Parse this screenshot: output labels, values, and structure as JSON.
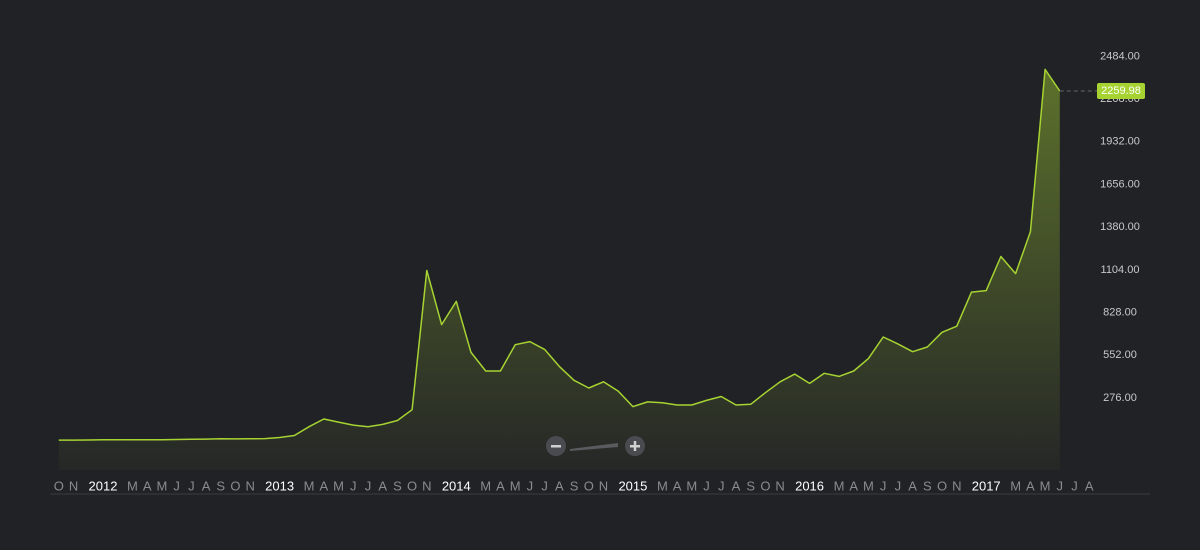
{
  "chart_data": {
    "type": "area",
    "x": [
      "2011-10",
      "2011-11",
      "2011-12",
      "2012-01",
      "2012-02",
      "2012-03",
      "2012-04",
      "2012-05",
      "2012-06",
      "2012-07",
      "2012-08",
      "2012-09",
      "2012-10",
      "2012-11",
      "2012-12",
      "2013-01",
      "2013-02",
      "2013-03",
      "2013-04",
      "2013-05",
      "2013-06",
      "2013-07",
      "2013-08",
      "2013-09",
      "2013-10",
      "2013-11",
      "2013-12",
      "2014-01",
      "2014-02",
      "2014-03",
      "2014-04",
      "2014-05",
      "2014-06",
      "2014-07",
      "2014-08",
      "2014-09",
      "2014-10",
      "2014-11",
      "2014-12",
      "2015-01",
      "2015-02",
      "2015-03",
      "2015-04",
      "2015-05",
      "2015-06",
      "2015-07",
      "2015-08",
      "2015-09",
      "2015-10",
      "2015-11",
      "2015-12",
      "2016-01",
      "2016-02",
      "2016-03",
      "2016-04",
      "2016-05",
      "2016-06",
      "2016-07",
      "2016-08",
      "2016-09",
      "2016-10",
      "2016-11",
      "2016-12",
      "2017-01",
      "2017-02",
      "2017-03",
      "2017-04",
      "2017-05",
      "2017-06"
    ],
    "values": [
      3,
      3,
      4,
      6,
      5,
      5,
      5,
      5,
      7,
      9,
      10,
      12,
      11,
      12,
      13,
      20,
      33,
      90,
      140,
      120,
      100,
      90,
      105,
      130,
      200,
      1100,
      750,
      900,
      570,
      450,
      450,
      620,
      640,
      590,
      480,
      390,
      340,
      380,
      320,
      220,
      250,
      245,
      230,
      230,
      260,
      285,
      230,
      235,
      310,
      380,
      430,
      370,
      435,
      415,
      450,
      530,
      670,
      625,
      575,
      605,
      700,
      740,
      960,
      970,
      1190,
      1080,
      1350,
      2400,
      2259.98
    ],
    "color": "#a6d332",
    "ylim": [
      -190,
      2590
    ],
    "yticks": [
      {
        "value": 276,
        "label": "276.00"
      },
      {
        "value": 552,
        "label": "552.00"
      },
      {
        "value": 828,
        "label": "828.00"
      },
      {
        "value": 1104,
        "label": "1104.00"
      },
      {
        "value": 1380,
        "label": "1380.00"
      },
      {
        "value": 1656,
        "label": "1656.00"
      },
      {
        "value": 1932,
        "label": "1932.00"
      },
      {
        "value": 2208,
        "label": "2208.00"
      },
      {
        "value": 2484,
        "label": "2484.00"
      }
    ],
    "xticks": [
      {
        "value": "2011-10",
        "label": "O"
      },
      {
        "value": "2011-11",
        "label": "N"
      },
      {
        "value": "2012-01",
        "label": "2012"
      },
      {
        "value": "2012-03",
        "label": "M"
      },
      {
        "value": "2012-04",
        "label": "A"
      },
      {
        "value": "2012-05",
        "label": "M"
      },
      {
        "value": "2012-06",
        "label": "J"
      },
      {
        "value": "2012-07",
        "label": "J"
      },
      {
        "value": "2012-08",
        "label": "A"
      },
      {
        "value": "2012-09",
        "label": "S"
      },
      {
        "value": "2012-10",
        "label": "O"
      },
      {
        "value": "2012-11",
        "label": "N"
      },
      {
        "value": "2013-01",
        "label": "2013"
      },
      {
        "value": "2013-03",
        "label": "M"
      },
      {
        "value": "2013-04",
        "label": "A"
      },
      {
        "value": "2013-05",
        "label": "M"
      },
      {
        "value": "2013-06",
        "label": "J"
      },
      {
        "value": "2013-07",
        "label": "J"
      },
      {
        "value": "2013-08",
        "label": "A"
      },
      {
        "value": "2013-09",
        "label": "S"
      },
      {
        "value": "2013-10",
        "label": "O"
      },
      {
        "value": "2013-11",
        "label": "N"
      },
      {
        "value": "2014-01",
        "label": "2014"
      },
      {
        "value": "2014-03",
        "label": "M"
      },
      {
        "value": "2014-04",
        "label": "A"
      },
      {
        "value": "2014-05",
        "label": "M"
      },
      {
        "value": "2014-06",
        "label": "J"
      },
      {
        "value": "2014-07",
        "label": "J"
      },
      {
        "value": "2014-08",
        "label": "A"
      },
      {
        "value": "2014-09",
        "label": "S"
      },
      {
        "value": "2014-10",
        "label": "O"
      },
      {
        "value": "2014-11",
        "label": "N"
      },
      {
        "value": "2015-01",
        "label": "2015"
      },
      {
        "value": "2015-03",
        "label": "M"
      },
      {
        "value": "2015-04",
        "label": "A"
      },
      {
        "value": "2015-05",
        "label": "M"
      },
      {
        "value": "2015-06",
        "label": "J"
      },
      {
        "value": "2015-07",
        "label": "J"
      },
      {
        "value": "2015-08",
        "label": "A"
      },
      {
        "value": "2015-09",
        "label": "S"
      },
      {
        "value": "2015-10",
        "label": "O"
      },
      {
        "value": "2015-11",
        "label": "N"
      },
      {
        "value": "2016-01",
        "label": "2016"
      },
      {
        "value": "2016-03",
        "label": "M"
      },
      {
        "value": "2016-04",
        "label": "A"
      },
      {
        "value": "2016-05",
        "label": "M"
      },
      {
        "value": "2016-06",
        "label": "J"
      },
      {
        "value": "2016-07",
        "label": "J"
      },
      {
        "value": "2016-08",
        "label": "A"
      },
      {
        "value": "2016-09",
        "label": "S"
      },
      {
        "value": "2016-10",
        "label": "O"
      },
      {
        "value": "2016-11",
        "label": "N"
      },
      {
        "value": "2017-01",
        "label": "2017"
      },
      {
        "value": "2017-03",
        "label": "M"
      },
      {
        "value": "2017-04",
        "label": "A"
      },
      {
        "value": "2017-05",
        "label": "M"
      },
      {
        "value": "2017-06",
        "label": "J"
      },
      {
        "value": "2017-07",
        "label": "J"
      },
      {
        "value": "2017-08",
        "label": "A"
      }
    ],
    "grid": false
  }
}
